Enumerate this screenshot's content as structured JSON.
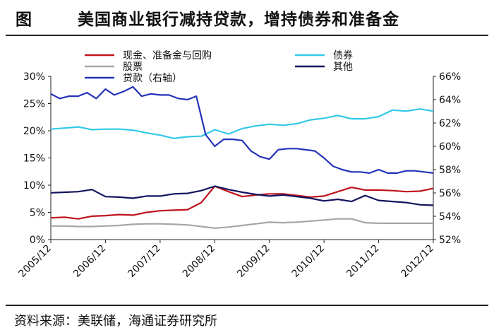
{
  "title": {
    "label": "图",
    "text": "美国商业银行减持贷款，增持债券和准备金"
  },
  "source": "资料来源：美联储，海通证券研究所",
  "chart_data": {
    "type": "line",
    "x_ticks": [
      "2005/12",
      "2006/12",
      "2007/12",
      "2008/12",
      "2009/12",
      "2010/12",
      "2011/12",
      "2012/12"
    ],
    "x_range": [
      2005.917,
      2012.917
    ],
    "left_axis": {
      "ylim": [
        0,
        30
      ],
      "ticks": [
        "0%",
        "5%",
        "10%",
        "15%",
        "20%",
        "25%",
        "30%"
      ]
    },
    "right_axis": {
      "ylim": [
        52,
        66
      ],
      "ticks": [
        "52%",
        "54%",
        "56%",
        "58%",
        "60%",
        "62%",
        "64%",
        "66%"
      ]
    },
    "series": [
      {
        "name": "现金、准备金与回购",
        "color": "#c0141e",
        "axis": "left",
        "x": [
          2005.917,
          2006.17,
          2006.42,
          2006.67,
          2006.917,
          2007.17,
          2007.42,
          2007.67,
          2007.917,
          2008.17,
          2008.42,
          2008.67,
          2008.917,
          2009.17,
          2009.42,
          2009.67,
          2009.917,
          2010.17,
          2010.42,
          2010.67,
          2010.917,
          2011.17,
          2011.42,
          2011.67,
          2011.917,
          2012.17,
          2012.42,
          2012.67,
          2012.917
        ],
        "y": [
          4.0,
          4.1,
          3.8,
          4.3,
          4.4,
          4.6,
          4.5,
          5.0,
          5.3,
          5.4,
          5.5,
          6.8,
          9.8,
          8.8,
          7.9,
          8.2,
          8.4,
          8.4,
          8.1,
          7.8,
          8.0,
          8.8,
          9.6,
          9.1,
          9.1,
          9.0,
          8.8,
          8.9,
          9.4
        ]
      },
      {
        "name": "债券",
        "color": "#33c9e8",
        "axis": "left",
        "x": [
          2005.917,
          2006.17,
          2006.42,
          2006.67,
          2006.917,
          2007.17,
          2007.42,
          2007.67,
          2007.917,
          2008.17,
          2008.42,
          2008.67,
          2008.917,
          2009.17,
          2009.42,
          2009.67,
          2009.917,
          2010.17,
          2010.42,
          2010.67,
          2010.917,
          2011.17,
          2011.42,
          2011.67,
          2011.917,
          2012.17,
          2012.42,
          2012.67,
          2012.917
        ],
        "y": [
          20.3,
          20.5,
          20.7,
          20.2,
          20.3,
          20.3,
          20.1,
          19.6,
          19.2,
          18.6,
          18.9,
          19.0,
          20.2,
          19.4,
          20.4,
          20.9,
          21.2,
          21.0,
          21.3,
          22.0,
          22.3,
          22.8,
          22.2,
          22.2,
          22.6,
          23.8,
          23.6,
          24.0,
          23.6
        ]
      },
      {
        "name": "股票",
        "color": "#a6a6a6",
        "axis": "left",
        "x": [
          2005.917,
          2006.17,
          2006.42,
          2006.67,
          2006.917,
          2007.17,
          2007.42,
          2007.67,
          2007.917,
          2008.17,
          2008.42,
          2008.67,
          2008.917,
          2009.17,
          2009.42,
          2009.67,
          2009.917,
          2010.17,
          2010.42,
          2010.67,
          2010.917,
          2011.17,
          2011.42,
          2011.67,
          2011.917,
          2012.17,
          2012.42,
          2012.67,
          2012.917
        ],
        "y": [
          2.5,
          2.5,
          2.4,
          2.4,
          2.5,
          2.6,
          2.8,
          2.9,
          2.9,
          2.8,
          2.7,
          2.4,
          2.1,
          2.3,
          2.6,
          2.9,
          3.2,
          3.1,
          3.2,
          3.4,
          3.6,
          3.8,
          3.8,
          3.1,
          3.0,
          3.0,
          3.0,
          3.0,
          3.0
        ]
      },
      {
        "name": "其他",
        "color": "#13145e",
        "axis": "left",
        "x": [
          2005.917,
          2006.17,
          2006.42,
          2006.67,
          2006.917,
          2007.17,
          2007.42,
          2007.67,
          2007.917,
          2008.17,
          2008.42,
          2008.67,
          2008.917,
          2009.17,
          2009.42,
          2009.67,
          2009.917,
          2010.17,
          2010.42,
          2010.67,
          2010.917,
          2011.17,
          2011.42,
          2011.67,
          2011.917,
          2012.17,
          2012.42,
          2012.67,
          2012.917
        ],
        "y": [
          8.6,
          8.7,
          8.8,
          9.2,
          7.9,
          7.8,
          7.6,
          8.0,
          8.0,
          8.4,
          8.5,
          9.0,
          9.8,
          9.2,
          8.7,
          8.3,
          8.0,
          8.2,
          7.9,
          7.6,
          7.1,
          7.4,
          7.0,
          8.1,
          7.2,
          7.0,
          6.8,
          6.4,
          6.3
        ]
      },
      {
        "name": "贷款（右轴）",
        "color": "#2333b8",
        "axis": "right",
        "x": [
          2005.917,
          2006.08,
          2006.25,
          2006.42,
          2006.58,
          2006.75,
          2006.917,
          2007.08,
          2007.25,
          2007.42,
          2007.58,
          2007.75,
          2007.917,
          2008.08,
          2008.25,
          2008.42,
          2008.58,
          2008.75,
          2008.917,
          2009.08,
          2009.25,
          2009.42,
          2009.58,
          2009.75,
          2009.917,
          2010.08,
          2010.25,
          2010.42,
          2010.58,
          2010.75,
          2010.917,
          2011.08,
          2011.25,
          2011.42,
          2011.58,
          2011.75,
          2011.917,
          2012.08,
          2012.25,
          2012.42,
          2012.58,
          2012.75,
          2012.917
        ],
        "y": [
          64.5,
          64.1,
          64.3,
          64.3,
          64.6,
          64.1,
          64.9,
          64.4,
          64.7,
          65.1,
          64.3,
          64.5,
          64.4,
          64.4,
          64.1,
          64.0,
          64.3,
          61.0,
          60.0,
          60.6,
          60.6,
          60.5,
          59.6,
          59.1,
          58.9,
          59.7,
          59.8,
          59.8,
          59.7,
          59.6,
          59.0,
          58.3,
          58.0,
          57.8,
          57.8,
          57.7,
          58.0,
          57.7,
          57.7,
          57.9,
          57.9,
          57.8,
          57.7
        ]
      }
    ]
  }
}
